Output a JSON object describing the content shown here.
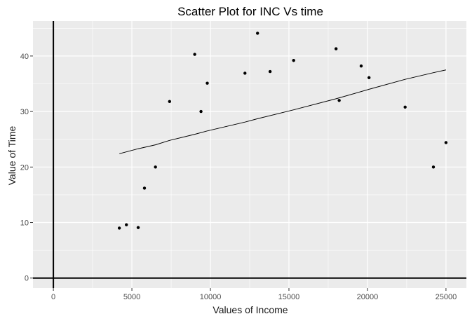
{
  "chart_data": {
    "type": "scatter",
    "title": "Scatter Plot for INC Vs time",
    "xlabel": "Values of Income",
    "ylabel": "Value of Time",
    "xlim": [
      -1300,
      26300
    ],
    "ylim": [
      -1.8,
      46.3
    ],
    "x_ticks": [
      0,
      5000,
      10000,
      15000,
      20000,
      25000
    ],
    "x_tick_labels": [
      "0",
      "5000",
      "10000",
      "15000",
      "20000",
      "25000"
    ],
    "y_ticks": [
      0,
      10,
      20,
      30,
      40
    ],
    "y_tick_labels": [
      "0",
      "10",
      "20",
      "30",
      "40"
    ],
    "grid": true,
    "reference_lines": {
      "vertical_at_x": 0,
      "horizontal_at_y": 0
    },
    "points": {
      "x": [
        4200,
        4650,
        5400,
        5800,
        6500,
        7400,
        9000,
        9400,
        9800,
        12200,
        13000,
        13800,
        15300,
        18000,
        18200,
        19600,
        20100,
        22400,
        24200,
        25000
      ],
      "y": [
        9.0,
        9.6,
        9.1,
        16.2,
        20.0,
        31.8,
        40.3,
        30.0,
        35.1,
        36.9,
        44.1,
        37.2,
        39.2,
        41.3,
        32.0,
        38.2,
        36.1,
        30.8,
        20.0,
        24.4
      ]
    },
    "trend_line": {
      "x": [
        4200,
        5400,
        6500,
        7400,
        9000,
        9800,
        12200,
        13000,
        15300,
        18000,
        20100,
        22400,
        24200,
        25000
      ],
      "y": [
        22.4,
        23.3,
        24.0,
        24.8,
        25.9,
        26.5,
        28.1,
        28.7,
        30.3,
        32.3,
        34.0,
        35.8,
        37.0,
        37.5
      ]
    },
    "colors": {
      "panel": "#ebebeb",
      "grid": "#ffffff",
      "points": "#000000",
      "line": "#000000"
    }
  }
}
